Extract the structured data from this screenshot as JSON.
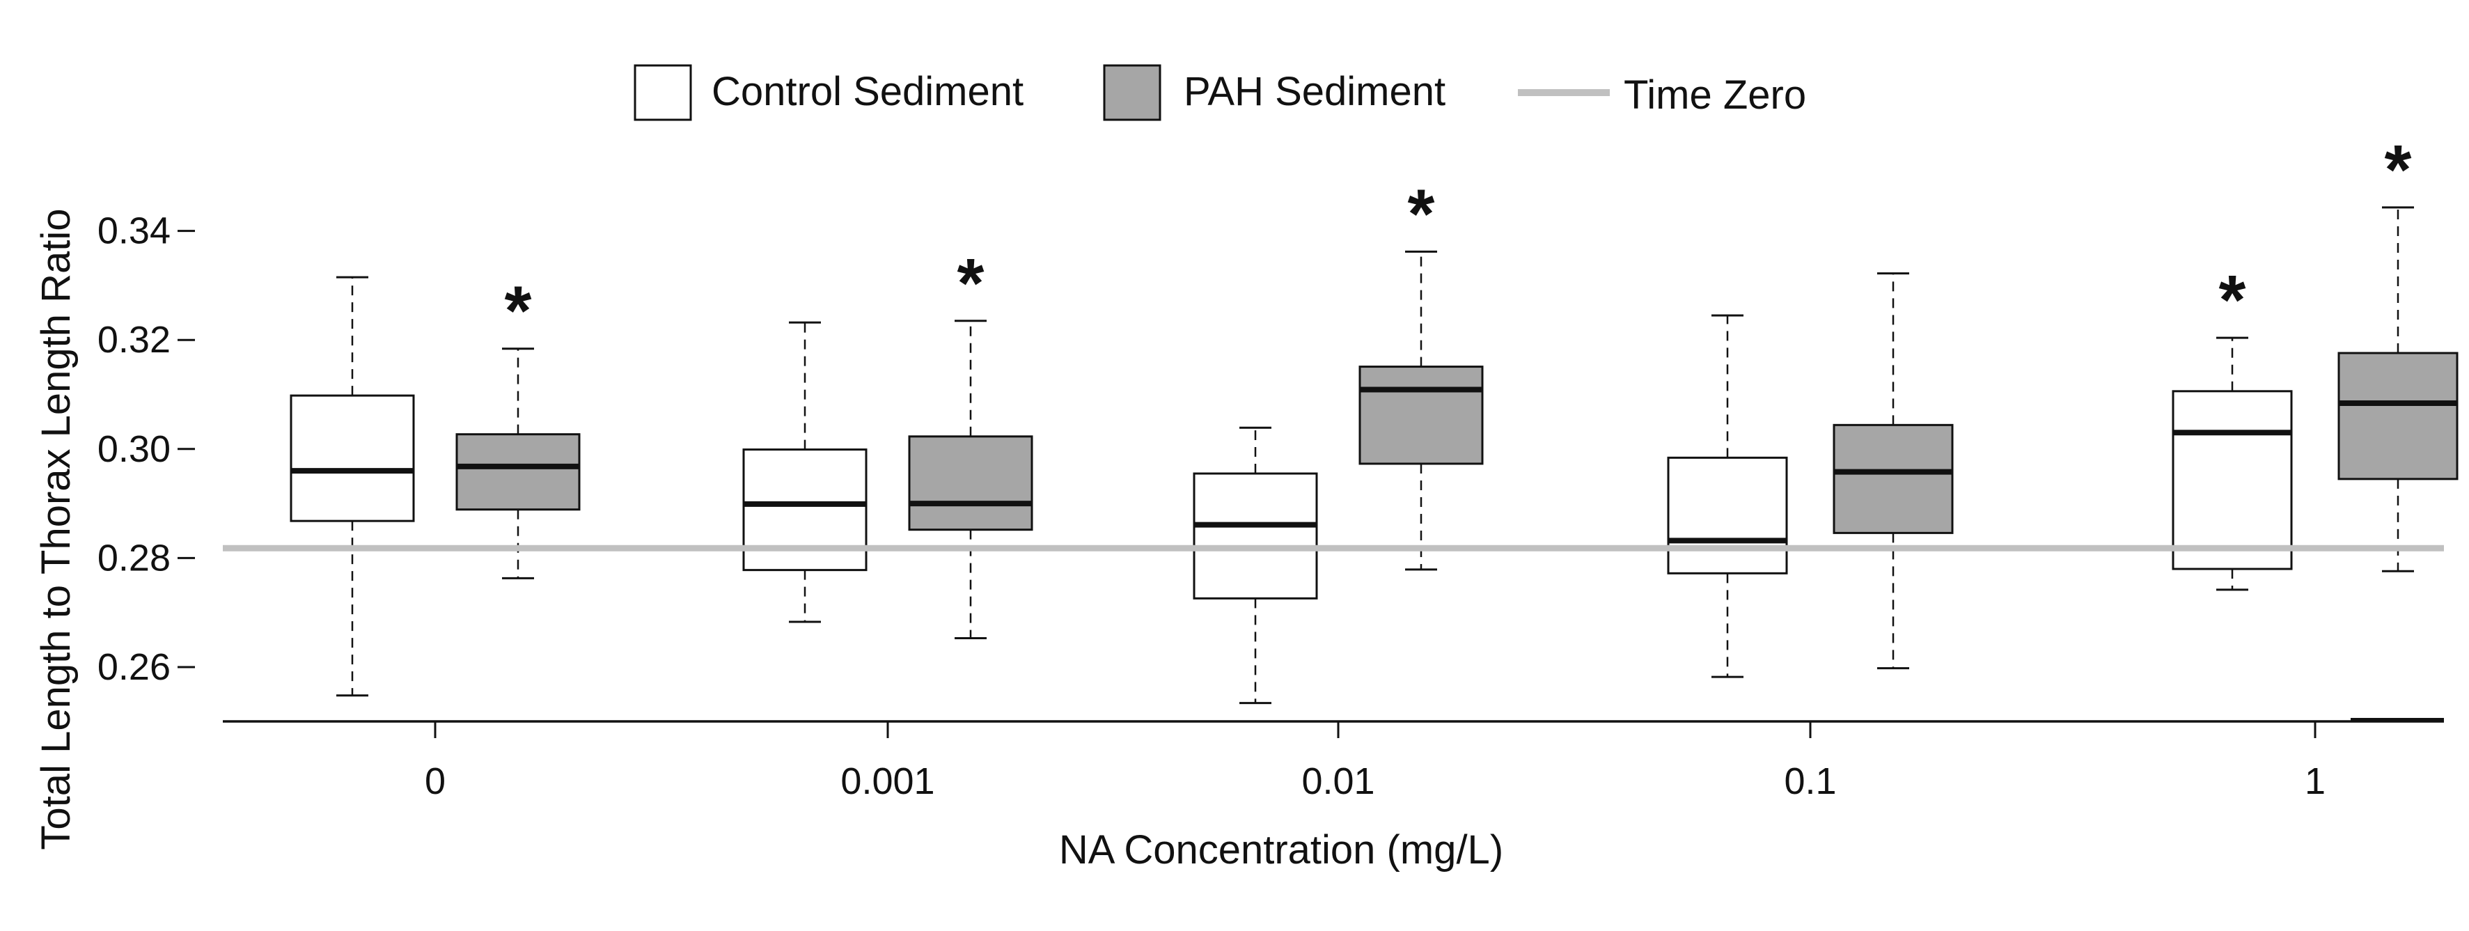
{
  "chart_data": {
    "type": "boxplot",
    "xlabel": "NA Concentration (mg/L)",
    "ylabel": "Total Length to Thorax Length Ratio",
    "ylim": [
      0.25,
      0.345
    ],
    "yticks": [
      "0.26",
      "0.28",
      "0.30",
      "0.32",
      "0.34"
    ],
    "ytick_values": [
      0.26,
      0.28,
      0.3,
      0.32,
      0.34
    ],
    "categories": [
      "0",
      "0.001",
      "0.01",
      "0.1",
      "1"
    ],
    "legend": {
      "control_label": "Control Sediment",
      "pah_label": "PAH Sediment",
      "timezero_label": "Time Zero"
    },
    "reference_line": {
      "name": "Time Zero",
      "value": 0.2818
    },
    "significance_marker": "*",
    "colors": {
      "control_fill": "#ffffff",
      "pah_fill": "#a6a6a6",
      "reference": "#c0c0c0",
      "stroke": "#111111"
    },
    "series": [
      {
        "name": "Control Sediment",
        "boxes": [
          {
            "category": "0",
            "min": 0.2548,
            "q1": 0.2868,
            "median": 0.296,
            "q3": 0.3098,
            "max": 0.3315,
            "significant": false
          },
          {
            "category": "0.001",
            "min": 0.2683,
            "q1": 0.2778,
            "median": 0.2899,
            "q3": 0.2999,
            "max": 0.3232,
            "significant": false
          },
          {
            "category": "0.01",
            "min": 0.2534,
            "q1": 0.2726,
            "median": 0.2861,
            "q3": 0.2955,
            "max": 0.3039,
            "significant": false
          },
          {
            "category": "0.1",
            "min": 0.2582,
            "q1": 0.2772,
            "median": 0.2832,
            "q3": 0.2984,
            "max": 0.3245,
            "significant": false
          },
          {
            "category": "1",
            "min": 0.2742,
            "q1": 0.278,
            "median": 0.303,
            "q3": 0.3106,
            "max": 0.3204,
            "significant": true
          }
        ]
      },
      {
        "name": "PAH Sediment",
        "boxes": [
          {
            "category": "0",
            "min": 0.2763,
            "q1": 0.2889,
            "median": 0.2968,
            "q3": 0.3027,
            "max": 0.3184,
            "significant": true
          },
          {
            "category": "0.001",
            "min": 0.2653,
            "q1": 0.2852,
            "median": 0.29,
            "q3": 0.3023,
            "max": 0.3235,
            "significant": true
          },
          {
            "category": "0.01",
            "min": 0.2779,
            "q1": 0.2973,
            "median": 0.3109,
            "q3": 0.3151,
            "max": 0.3362,
            "significant": true
          },
          {
            "category": "0.1",
            "min": 0.2598,
            "q1": 0.2846,
            "median": 0.2958,
            "q3": 0.3044,
            "max": 0.3322,
            "significant": false
          },
          {
            "category": "1",
            "min": 0.2776,
            "q1": 0.2945,
            "median": 0.3084,
            "q3": 0.3176,
            "max": 0.3443,
            "significant": true
          }
        ]
      }
    ]
  }
}
